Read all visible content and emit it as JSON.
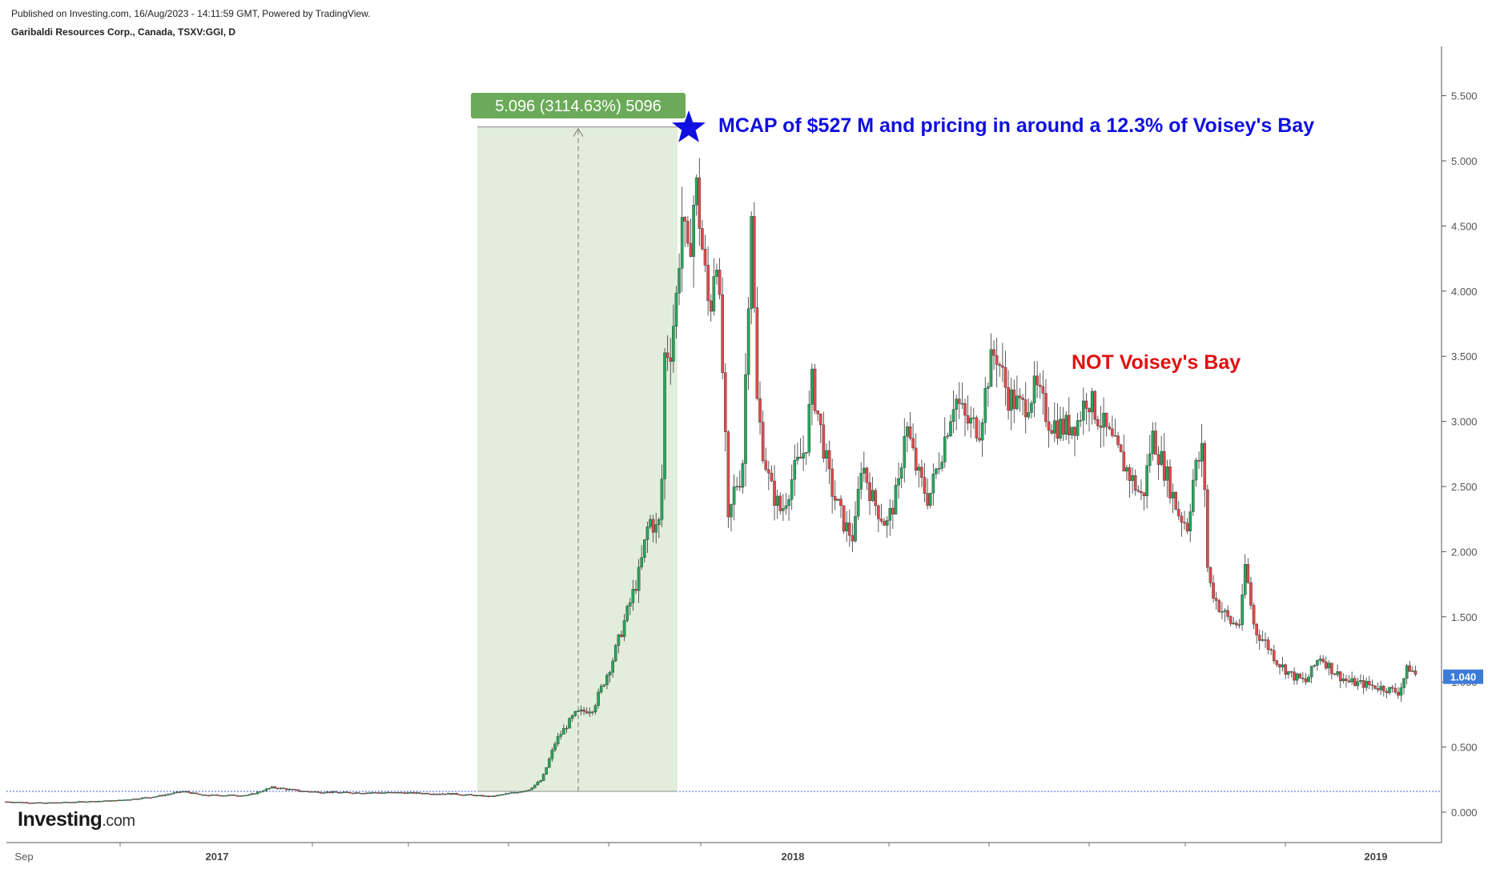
{
  "header": {
    "published": "Published on Investing.com, 16/Aug/2023 - 14:11:59 GMT, Powered by TradingView.",
    "symbol": "Garibaldi Resources Corp., Canada, TSXV:GGI, D"
  },
  "logo": {
    "brand": "Investing",
    "suffix": ".com"
  },
  "colors": {
    "up": "#26a65b",
    "down": "#e24a4a",
    "measure_fill": "#e2eedb",
    "measure_label": "#6aaa58",
    "price_tag": "#3d7bd9",
    "baseline": "#3d5fd9"
  },
  "chart_data": {
    "type": "candlestick",
    "title": "Garibaldi Resources Corp., Canada, TSXV:GGI, D",
    "ylim": [
      -0.25,
      5.85
    ],
    "y_ticks": [
      "0.000",
      "0.500",
      "1.000",
      "1.500",
      "2.000",
      "2.500",
      "3.000",
      "3.500",
      "4.000",
      "4.500",
      "5.000",
      "5.500"
    ],
    "x_ticks": [
      {
        "label": "Sep",
        "bold": false
      },
      {
        "label": "2017",
        "bold": true
      },
      {
        "label": "2018",
        "bold": true
      },
      {
        "label": "2019",
        "bold": true
      }
    ],
    "last_price": "1.040",
    "baseline_price": 0.16,
    "measure": {
      "label": "5.096 (3114.63%) 5096",
      "from_price": 0.16,
      "to_price": 5.26
    },
    "annotations": [
      {
        "text": "MCAP of $527 M and pricing in around a 12.3% of Voisey's Bay",
        "color": "blue"
      },
      {
        "text": "NOT Voisey's Bay",
        "color": "red"
      }
    ],
    "series_close": [
      [
        0,
        0.08
      ],
      [
        40,
        0.07
      ],
      [
        80,
        0.08
      ],
      [
        120,
        0.09
      ],
      [
        160,
        0.12
      ],
      [
        190,
        0.16
      ],
      [
        210,
        0.13
      ],
      [
        260,
        0.13
      ],
      [
        285,
        0.19
      ],
      [
        320,
        0.16
      ],
      [
        360,
        0.15
      ],
      [
        420,
        0.15
      ],
      [
        480,
        0.14
      ],
      [
        520,
        0.12
      ],
      [
        560,
        0.17
      ],
      [
        575,
        0.25
      ],
      [
        590,
        0.55
      ],
      [
        610,
        0.75
      ],
      [
        630,
        0.8
      ],
      [
        650,
        1.15
      ],
      [
        665,
        1.5
      ],
      [
        680,
        1.85
      ],
      [
        690,
        2.25
      ],
      [
        700,
        2.15
      ],
      [
        705,
        2.7
      ],
      [
        707,
        3.6
      ],
      [
        712,
        3.5
      ],
      [
        720,
        4.0
      ],
      [
        725,
        4.6
      ],
      [
        732,
        4.2
      ],
      [
        740,
        4.85
      ],
      [
        746,
        4.4
      ],
      [
        755,
        3.8
      ],
      [
        762,
        4.4
      ],
      [
        770,
        3.2
      ],
      [
        775,
        2.2
      ],
      [
        782,
        2.5
      ],
      [
        790,
        2.6
      ],
      [
        800,
        4.7
      ],
      [
        805,
        3.2
      ],
      [
        812,
        2.8
      ],
      [
        820,
        2.5
      ],
      [
        832,
        2.3
      ],
      [
        845,
        2.6
      ],
      [
        858,
        2.8
      ],
      [
        865,
        3.3
      ],
      [
        875,
        2.9
      ],
      [
        885,
        2.5
      ],
      [
        900,
        2.2
      ],
      [
        910,
        2.1
      ],
      [
        918,
        2.7
      ],
      [
        930,
        2.4
      ],
      [
        945,
        2.2
      ],
      [
        958,
        2.5
      ],
      [
        965,
        3.0
      ],
      [
        978,
        2.6
      ],
      [
        990,
        2.4
      ],
      [
        1005,
        2.8
      ],
      [
        1018,
        3.2
      ],
      [
        1030,
        3.0
      ],
      [
        1045,
        2.95
      ],
      [
        1055,
        3.4
      ],
      [
        1062,
        3.55
      ],
      [
        1075,
        3.2
      ],
      [
        1090,
        3.1
      ],
      [
        1105,
        3.25
      ],
      [
        1120,
        3.0
      ],
      [
        1135,
        2.95
      ],
      [
        1150,
        3.0
      ],
      [
        1160,
        3.2
      ],
      [
        1175,
        3.0
      ],
      [
        1190,
        2.8
      ],
      [
        1205,
        2.6
      ],
      [
        1220,
        2.4
      ],
      [
        1230,
        2.9
      ],
      [
        1245,
        2.6
      ],
      [
        1258,
        2.3
      ],
      [
        1268,
        2.2
      ],
      [
        1275,
        2.6
      ],
      [
        1285,
        2.8
      ],
      [
        1290,
        1.8
      ],
      [
        1300,
        1.6
      ],
      [
        1315,
        1.45
      ],
      [
        1325,
        1.45
      ],
      [
        1330,
        1.9
      ],
      [
        1340,
        1.4
      ],
      [
        1352,
        1.3
      ],
      [
        1365,
        1.15
      ],
      [
        1380,
        1.05
      ],
      [
        1395,
        1.0
      ],
      [
        1410,
        1.2
      ],
      [
        1425,
        1.08
      ],
      [
        1440,
        1.0
      ],
      [
        1460,
        0.98
      ],
      [
        1480,
        0.95
      ],
      [
        1495,
        0.92
      ],
      [
        1505,
        1.12
      ],
      [
        1515,
        1.04
      ]
    ]
  }
}
